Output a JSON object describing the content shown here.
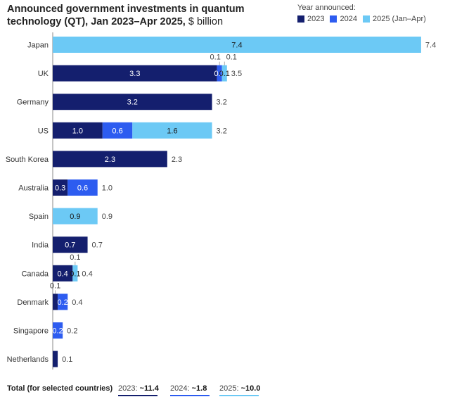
{
  "header": {
    "title": "Announced government investments in quantum technology (QT), Jan 2023–Apr 2025,",
    "unit": "$ billion"
  },
  "legend": {
    "title": "Year announced:",
    "items": [
      {
        "label": "2023",
        "color": "#141f6e"
      },
      {
        "label": "2024",
        "color": "#2d5cf0"
      },
      {
        "label": "2025 (Jan–Apr)",
        "color": "#6cc9f5"
      }
    ]
  },
  "chart_data": {
    "type": "bar",
    "orientation": "horizontal",
    "stacked": true,
    "title": "Announced government investments in quantum technology (QT), Jan 2023–Apr 2025, $ billion",
    "categories": [
      "Japan",
      "UK",
      "Germany",
      "US",
      "South Korea",
      "Australia",
      "Spain",
      "India",
      "Canada",
      "Denmark",
      "Singapore",
      "Netherlands"
    ],
    "series": [
      {
        "name": "2023",
        "color": "#141f6e",
        "values": [
          0,
          3.3,
          3.2,
          1.0,
          2.3,
          0.3,
          0,
          0.7,
          0.4,
          0.1,
          0,
          0.1
        ]
      },
      {
        "name": "2024",
        "color": "#2d5cf0",
        "values": [
          0,
          0.1,
          0,
          0.6,
          0,
          0.6,
          0,
          0,
          0,
          0.2,
          0.2,
          0
        ]
      },
      {
        "name": "2025 (Jan–Apr)",
        "color": "#6cc9f5",
        "values": [
          7.4,
          0.1,
          0,
          1.6,
          0,
          0,
          0.9,
          0,
          0.1,
          0,
          0,
          0
        ]
      }
    ],
    "labels": [
      [
        null,
        null,
        "7.4"
      ],
      [
        "3.3",
        "0.1",
        "0.1"
      ],
      [
        "3.2",
        null,
        null
      ],
      [
        "1.0",
        "0.6",
        "1.6"
      ],
      [
        "2.3",
        null,
        null
      ],
      [
        "0.3",
        "0.6",
        null
      ],
      [
        null,
        null,
        "0.9"
      ],
      [
        "0.7",
        null,
        null
      ],
      [
        "0.4",
        null,
        "0.1"
      ],
      [
        null,
        "0.2",
        null
      ],
      [
        null,
        "0.2",
        null
      ],
      [
        null,
        null,
        null
      ]
    ],
    "outside_labels": [
      [],
      [
        {
          "series": 1,
          "text": "0.1"
        },
        {
          "series": 2,
          "text": "0.1"
        }
      ],
      [],
      [],
      [],
      [],
      [],
      [],
      [
        {
          "series": 2,
          "text": "0.1"
        }
      ],
      [
        {
          "series": 0,
          "text": "0.1"
        }
      ],
      [],
      []
    ],
    "totals": [
      "7.4",
      "3.5",
      "3.2",
      "3.2",
      "2.3",
      "1.0",
      "0.9",
      "0.7",
      "0.4",
      "0.4",
      "0.2",
      "0.1"
    ],
    "xlim": [
      0,
      7.4
    ]
  },
  "footer": {
    "label": "Total (for selected countries)",
    "items": [
      {
        "prefix": "2023: ",
        "value": "~11.4",
        "color": "#141f6e"
      },
      {
        "prefix": "2024: ",
        "value": "~1.8",
        "color": "#2d5cf0"
      },
      {
        "prefix": "2025: ",
        "value": "~10.0",
        "color": "#6cc9f5"
      }
    ]
  }
}
